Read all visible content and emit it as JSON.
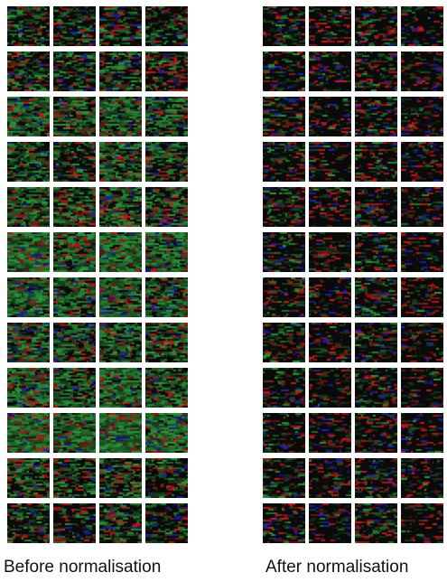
{
  "panels": {
    "before": {
      "caption": "Before normalisation",
      "rows": 12,
      "cols": 4,
      "green_intensity_by_row": [
        0.25,
        0.3,
        0.55,
        0.45,
        0.5,
        0.7,
        0.6,
        0.5,
        0.6,
        0.75,
        0.35,
        0.25
      ]
    },
    "after": {
      "caption": "After normalisation",
      "rows": 12,
      "cols": 4,
      "green_intensity_by_row": [
        0.1,
        0.1,
        0.1,
        0.1,
        0.1,
        0.1,
        0.1,
        0.1,
        0.1,
        0.1,
        0.1,
        0.1
      ]
    }
  },
  "colors": {
    "background_tile": "#0a0a0a",
    "green": "#2e9e3e",
    "red": "#d01818",
    "blue": "#2020c0",
    "separator": "#ffffff"
  }
}
